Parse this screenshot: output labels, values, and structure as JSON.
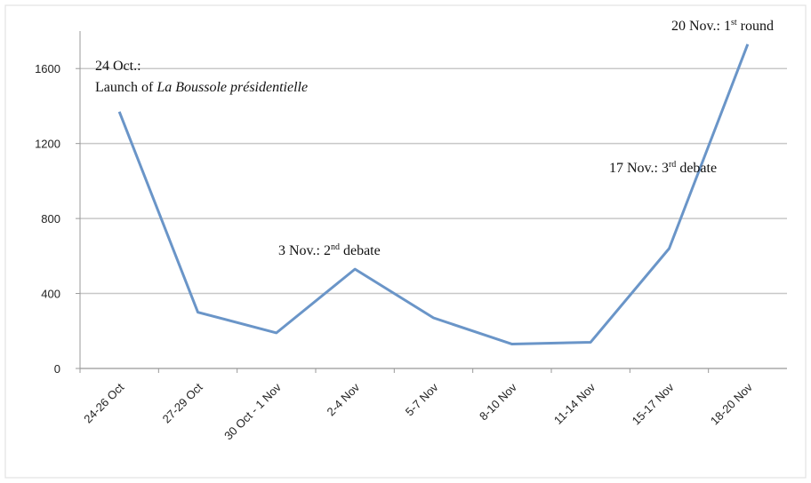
{
  "chart_data": {
    "type": "line",
    "categories": [
      "24-26 Oct",
      "27-29 Oct",
      "30 Oct - 1 Nov",
      "2-4 Nov",
      "5-7 Nov",
      "8-10 Nov",
      "11-14 Nov",
      "15-17 Nov",
      "18-20 Nov"
    ],
    "series": [
      {
        "color": "#6a95c8",
        "values": [
          1370,
          300,
          190,
          530,
          270,
          130,
          140,
          640,
          1730
        ]
      }
    ],
    "ylim": [
      0,
      1800
    ],
    "yticks": [
      0,
      400,
      800,
      1200,
      1600
    ],
    "grid": true,
    "annotations": [
      {
        "lines": [
          [
            {
              "text": "24 Oct.:"
            }
          ],
          [
            {
              "text": "Launch of "
            },
            {
              "text": "La Boussole présidentielle",
              "style": "italic"
            }
          ]
        ]
      },
      {
        "lines": [
          [
            {
              "text": "3 Nov.: 2"
            },
            {
              "text": "nd",
              "style": "sup"
            },
            {
              "text": " debate"
            }
          ]
        ]
      },
      {
        "lines": [
          [
            {
              "text": "17 Nov.: 3"
            },
            {
              "text": "rd",
              "style": "sup"
            },
            {
              "text": " debate"
            }
          ]
        ]
      },
      {
        "lines": [
          [
            {
              "text": "20 Nov.: 1"
            },
            {
              "text": "st",
              "style": "sup"
            },
            {
              "text": " round"
            }
          ]
        ]
      }
    ]
  }
}
